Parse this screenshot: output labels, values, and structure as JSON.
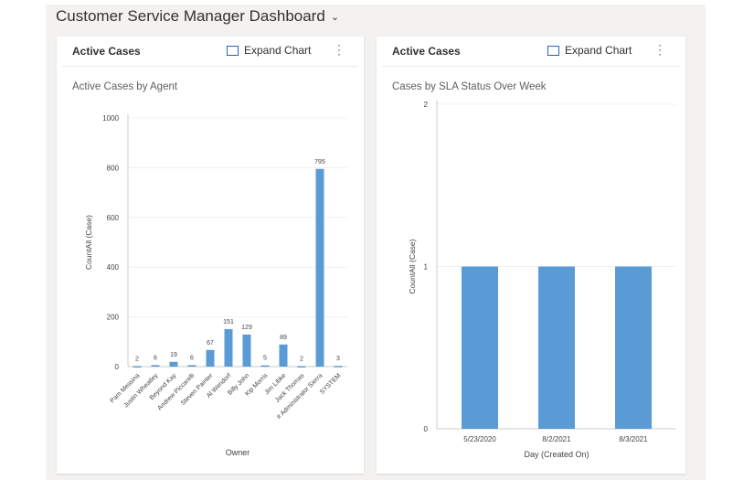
{
  "dashboard": {
    "title": "Customer Service Manager Dashboard",
    "chevron_icon": "chevron-down-icon"
  },
  "cards": [
    {
      "name": "Active Cases",
      "expand_label": "Expand Chart",
      "chart_title": "Active Cases by Agent"
    },
    {
      "name": "Active Cases",
      "expand_label": "Expand Chart",
      "chart_title": "Cases by SLA Status Over Week"
    }
  ],
  "colors": {
    "bar": "#5b9bd5",
    "accent": "#2266b8"
  },
  "chart_data": [
    {
      "type": "bar",
      "title": "Active Cases by Agent",
      "xlabel": "Owner",
      "ylabel": "CountAll (Case)",
      "ylim": [
        0,
        1000
      ],
      "yticks": [
        0,
        200,
        400,
        600,
        800,
        1000
      ],
      "categories": [
        "Pam Messina",
        "Justin Wheatley",
        "Beyond Kay",
        "Andrew Piccarelli",
        "Steven Painter",
        "Al Wendorf",
        "Billy John",
        "Kip Morris",
        "Jim Libke",
        "Jack Thomas",
        "# Administrator Sierra",
        "SYSTEM"
      ],
      "values": [
        2,
        6,
        19,
        6,
        67,
        151,
        129,
        5,
        89,
        2,
        795,
        3
      ],
      "data_labels": true,
      "grid": true
    },
    {
      "type": "bar",
      "title": "Cases by SLA Status Over Week",
      "xlabel": "Day (Created On)",
      "ylabel": "CountAll (Case)",
      "ylim": [
        0,
        2
      ],
      "yticks": [
        0,
        1,
        2
      ],
      "categories": [
        "5/23/2020",
        "8/2/2021",
        "8/3/2021"
      ],
      "values": [
        1,
        1,
        1
      ],
      "data_labels": false,
      "grid": true
    }
  ]
}
